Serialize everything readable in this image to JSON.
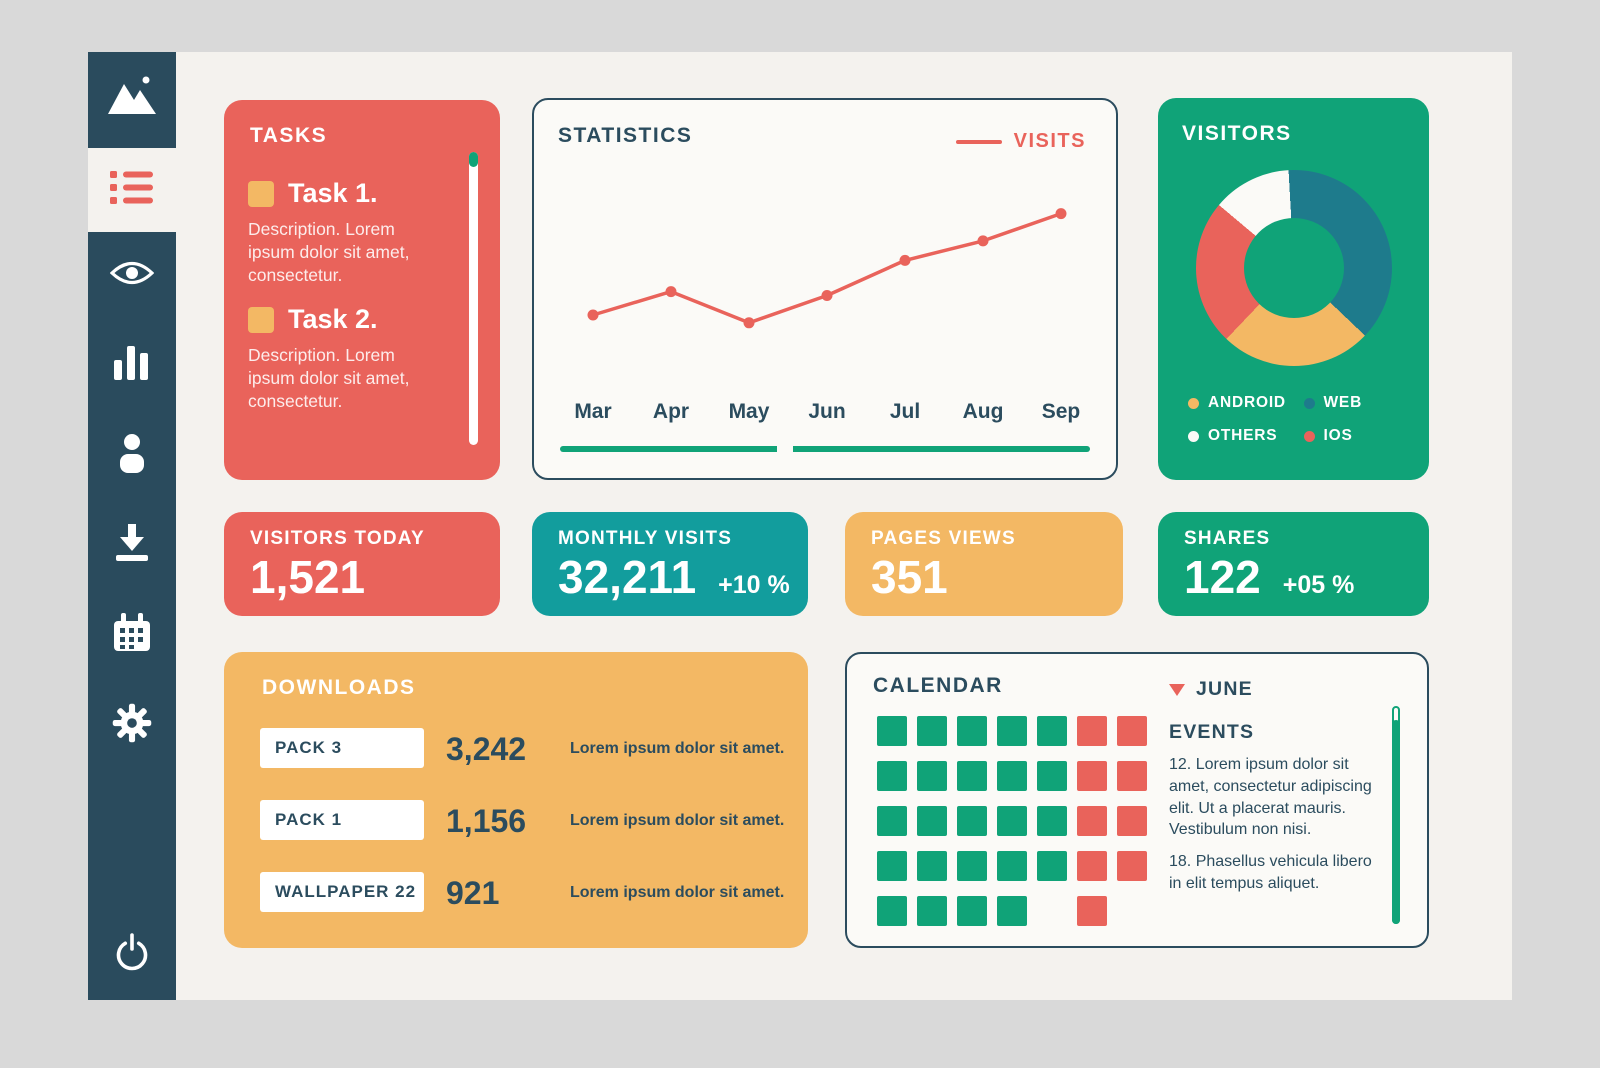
{
  "colors": {
    "background": "#d9d9d9",
    "panel": "#f4f2ee",
    "sidebar": "#2a4b5d",
    "navy": "#2b4c5e",
    "coral": "#e9635b",
    "orange": "#f3b864",
    "teal": "#129d9d",
    "green": "#10a378",
    "donut_teal": "#1e7b8c"
  },
  "sidebar": {
    "items": [
      {
        "icon": "mountain-logo"
      },
      {
        "icon": "task-list",
        "active": true
      },
      {
        "icon": "eye"
      },
      {
        "icon": "bar-chart"
      },
      {
        "icon": "user"
      },
      {
        "icon": "download"
      },
      {
        "icon": "calendar"
      },
      {
        "icon": "settings-gear"
      },
      {
        "icon": "power"
      }
    ]
  },
  "tasks": {
    "title": "TASKS",
    "items": [
      {
        "label": "Task 1.",
        "description": "Description. Lorem ipsum dolor sit amet, consectetur."
      },
      {
        "label": "Task 2.",
        "description": "Description. Lorem ipsum dolor sit amet, consectetur."
      }
    ]
  },
  "statistics": {
    "title": "STATISTICS",
    "legend_label": "VISITS",
    "chart_data": {
      "type": "line",
      "x": [
        "Mar",
        "Apr",
        "May",
        "Jun",
        "Jul",
        "Aug",
        "Sep"
      ],
      "series": [
        {
          "name": "VISITS",
          "values": [
            40,
            52,
            36,
            50,
            68,
            78,
            92
          ]
        }
      ],
      "ylim": [
        0,
        100
      ],
      "line_color": "#e9635b",
      "legend_position": "top-right",
      "grid": false
    }
  },
  "visitors": {
    "title": "VISITORS",
    "chart_data": {
      "type": "donut",
      "segments": [
        {
          "label": "OTHERS",
          "value": 13,
          "color": "#fbfaf7"
        },
        {
          "label": "WEB",
          "value": 38,
          "color": "#1e7b8c"
        },
        {
          "label": "ANDROID",
          "value": 25,
          "color": "#f3b864"
        },
        {
          "label": "IOS",
          "value": 24,
          "color": "#e9635b"
        }
      ]
    },
    "legend": [
      {
        "label": "ANDROID",
        "color": "#f3b864"
      },
      {
        "label": "WEB",
        "color": "#1e7b8c"
      },
      {
        "label": "OTHERS",
        "color": "#fbfaf7"
      },
      {
        "label": "IOS",
        "color": "#e9635b"
      }
    ]
  },
  "stat_cards": [
    {
      "title": "VISITORS TODAY",
      "value": "1,521",
      "suffix": ""
    },
    {
      "title": "MONTHLY VISITS",
      "value": "32,211",
      "suffix": "+10 %"
    },
    {
      "title": "PAGES VIEWS",
      "value": "351",
      "suffix": ""
    },
    {
      "title": "SHARES",
      "value": "122",
      "suffix": "+05 %"
    }
  ],
  "downloads": {
    "title": "DOWNLOADS",
    "rows": [
      {
        "label": "PACK 3",
        "value": "3,242",
        "note": "Lorem ipsum dolor sit amet."
      },
      {
        "label": "PACK 1",
        "value": "1,156",
        "note": "Lorem ipsum dolor sit amet."
      },
      {
        "label": "WALLPAPER 22",
        "value": "921",
        "note": "Lorem ipsum dolor sit amet."
      }
    ]
  },
  "calendar": {
    "title": "CALENDAR",
    "month": "JUNE",
    "events_title": "EVENTS",
    "events": [
      "12. Lorem ipsum dolor sit amet, consectetur adipiscing elit. Ut a placerat mauris. Vestibulum non nisi.",
      "18. Phasellus vehicula libero in elit tempus aliquet."
    ],
    "grid": [
      [
        "g",
        "g",
        "g",
        "g",
        "g",
        "r",
        "r"
      ],
      [
        "g",
        "g",
        "g",
        "g",
        "g",
        "r",
        "r"
      ],
      [
        "g",
        "g",
        "g",
        "g",
        "g",
        "r",
        "r"
      ],
      [
        "g",
        "g",
        "g",
        "g",
        "g",
        "r",
        "r"
      ],
      [
        "g",
        "g",
        "g",
        "g",
        "",
        "r",
        ""
      ]
    ]
  }
}
